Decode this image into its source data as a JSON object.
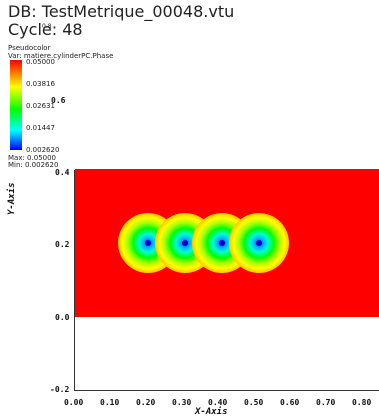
{
  "header": {
    "db_label": "DB: TestMetrique_00048.vtu",
    "cycle_label": "Cycle: 48",
    "cycle_overlay": "0.8"
  },
  "legend": {
    "type_label": "Pseudocolor",
    "var_label": "Var: matiere.cylinderPC.Phase",
    "values": [
      "0.05000",
      "0.03816",
      "0.02631",
      "0.01447",
      "0.002620"
    ],
    "max_label": "Max: 0.05000",
    "min_label": "Min: 0.002620",
    "inline_tick": "0.6"
  },
  "plot": {
    "y_ticks": [
      "0.4",
      "0.2",
      "0.0",
      "-0.2"
    ],
    "x_ticks": [
      "0.00",
      "0.10",
      "0.20",
      "0.30",
      "0.40",
      "0.50",
      "0.60",
      "0.70",
      "0.80"
    ],
    "x_axis_label": "X-Axis",
    "y_axis_label": "Y-Axis",
    "field_color": "#ff0000",
    "blob_centers_x": [
      0.2,
      0.3,
      0.4,
      0.5
    ],
    "blob_center_y": 0.2
  }
}
